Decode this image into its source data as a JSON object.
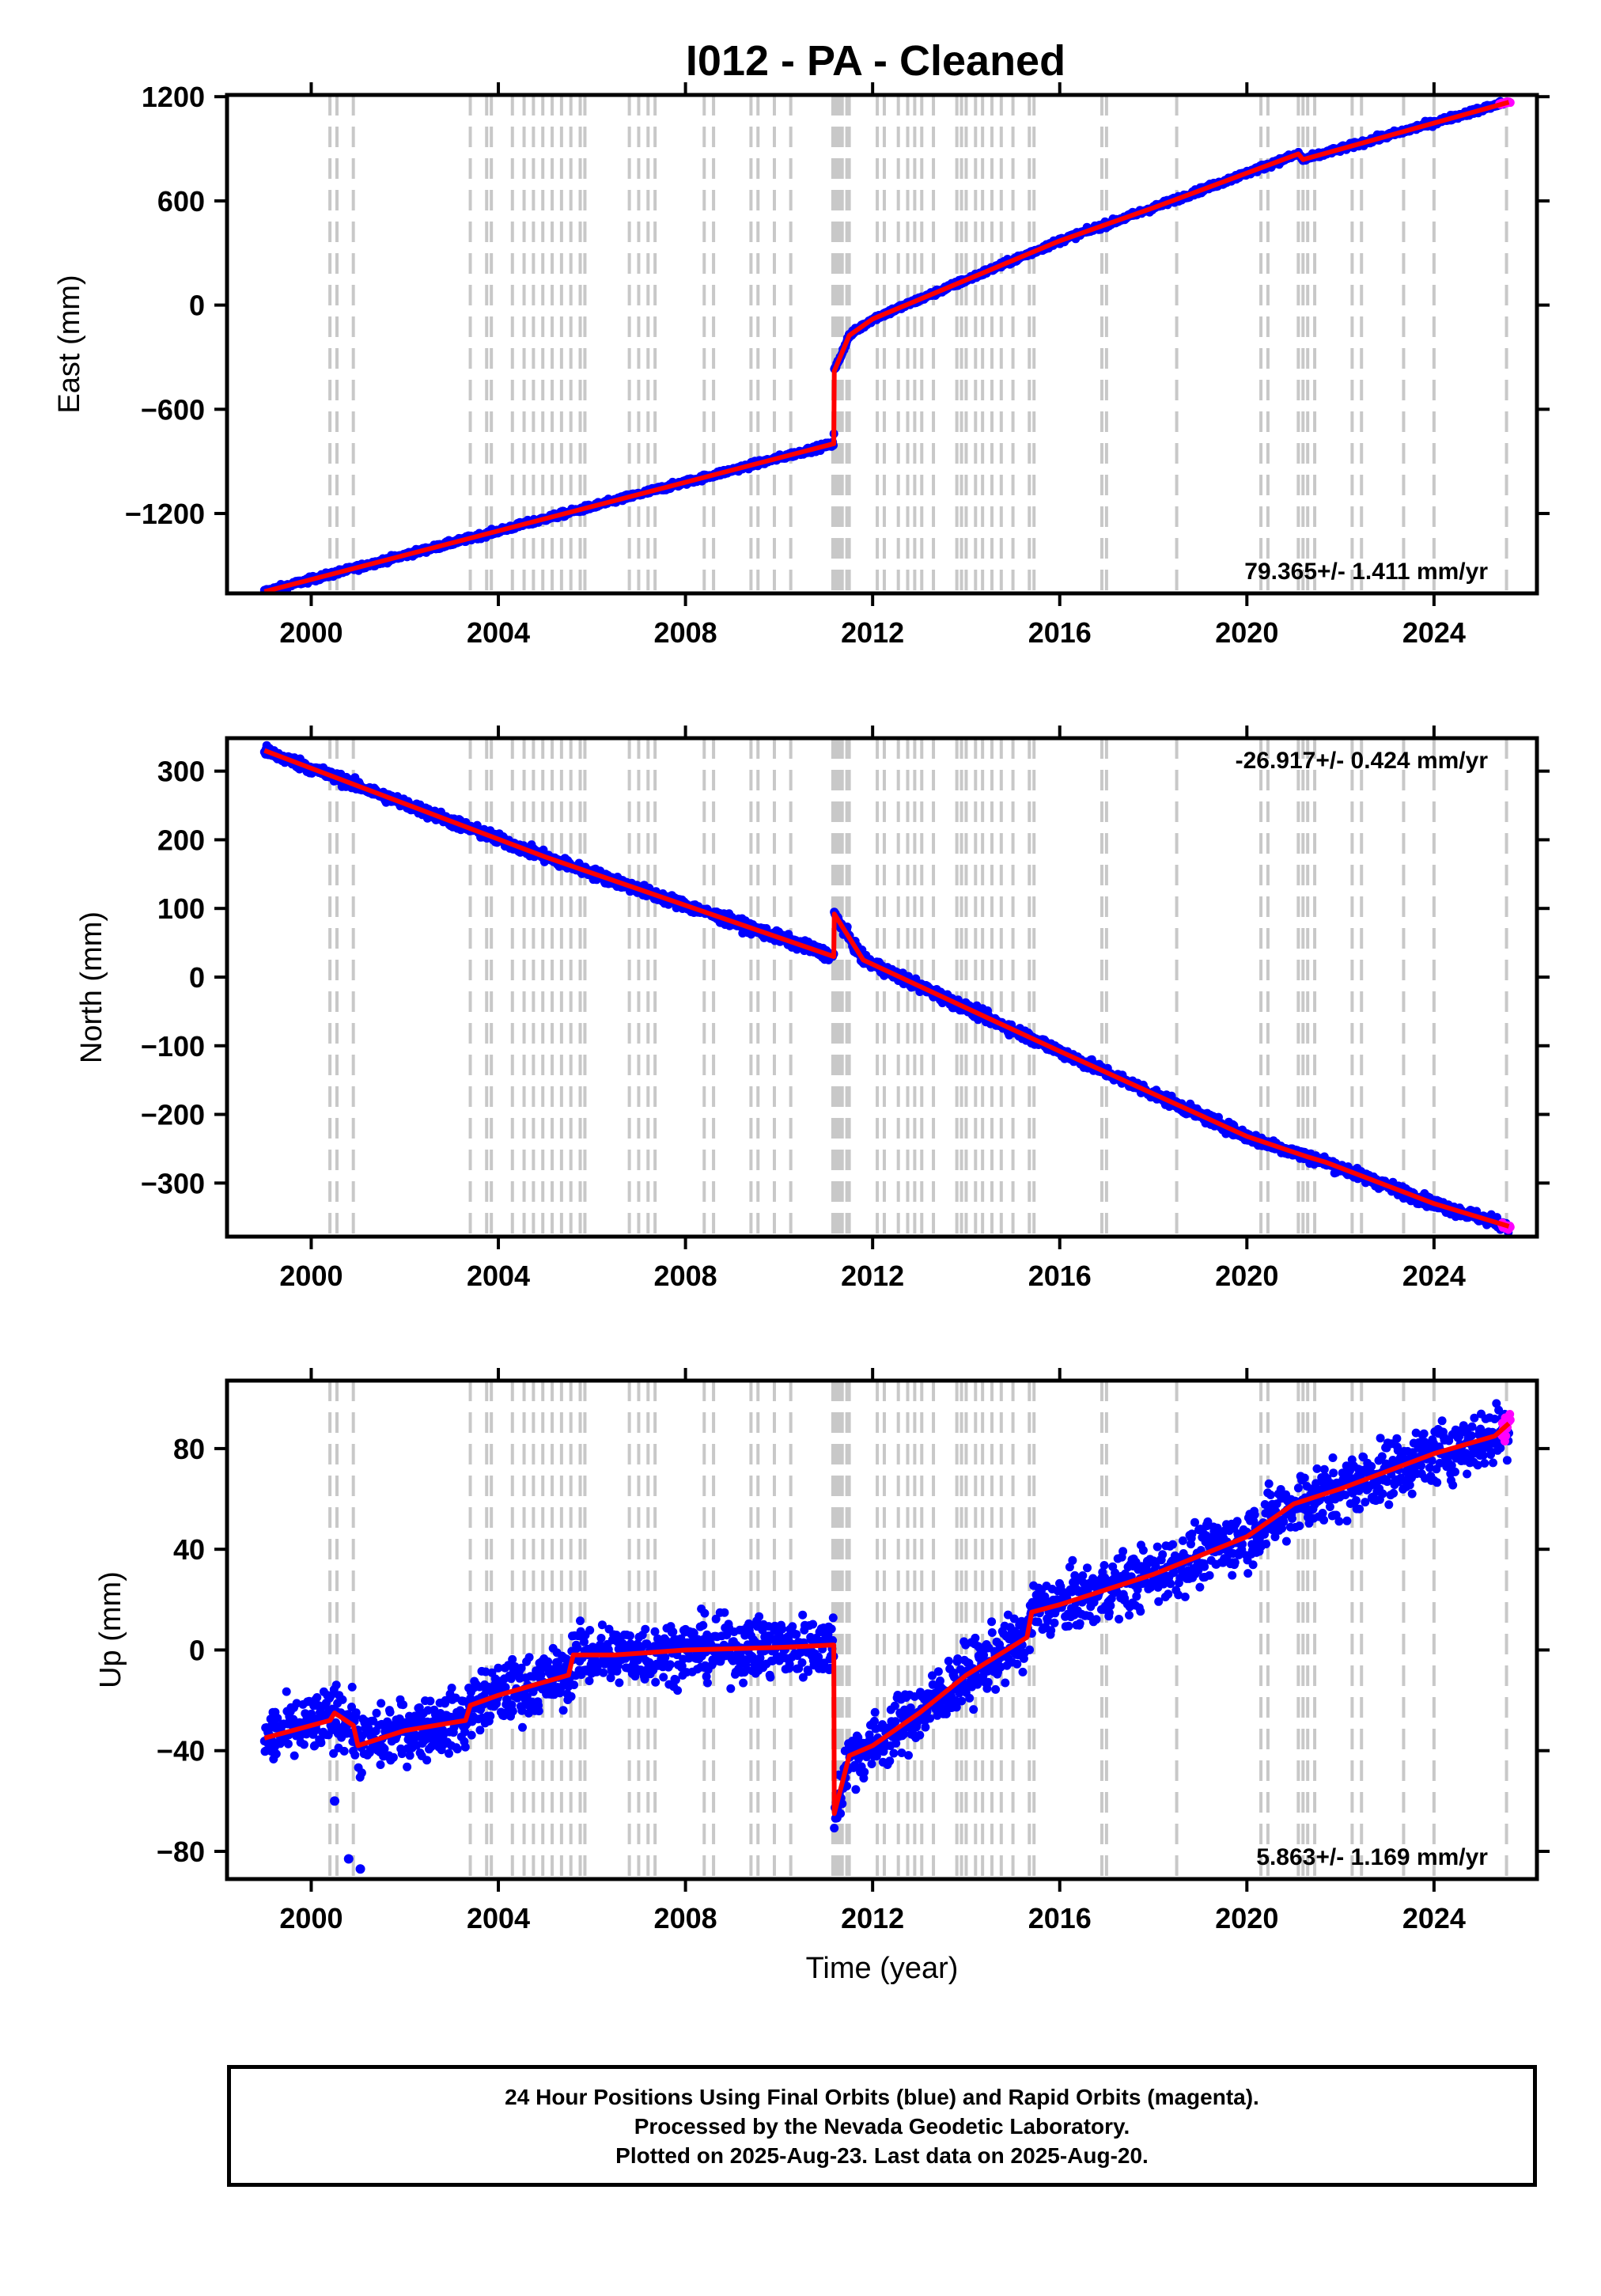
{
  "title": "I012  - PA - Cleaned",
  "colors": {
    "final_points": "#0000ff",
    "rapid_points": "#ff00ff",
    "model_line": "#ff0000",
    "event_lines": "#c8c8c8",
    "frame": "#000000"
  },
  "chart_data": [
    {
      "type": "scatter",
      "panel": "east",
      "ylabel": "East (mm)",
      "xlabel": "",
      "rate_label": "79.365+/- 1.411 mm/yr",
      "rate_position": "bottom-right",
      "xlim": [
        1998.2,
        2026.2
      ],
      "ylim": [
        -1660,
        1210
      ],
      "x_ticks": [
        2000,
        2004,
        2008,
        2012,
        2016,
        2020,
        2024
      ],
      "x_tick_labels": [
        "2000",
        "2004",
        "2008",
        "2012",
        "2016",
        "2020",
        "2024"
      ],
      "y_ticks": [
        1200,
        600,
        0,
        -600,
        -1200
      ],
      "y_tick_labels": [
        "1200",
        "600",
        "0",
        "−600",
        "−1200"
      ],
      "series": [
        {
          "marker": "final",
          "color": "#0000ff",
          "x": [
            1999.0,
            2011.17,
            2011.18,
            2011.5,
            2012,
            2014,
            2016,
            2018,
            2021.1,
            2021.2,
            2025.5
          ],
          "y": [
            -1650,
            -798,
            -380,
            -175,
            -80,
            145,
            370,
            560,
            870,
            838,
            1165
          ],
          "noise": 8
        },
        {
          "marker": "rapid",
          "color": "#ff00ff",
          "x": [
            2025.4,
            2025.63
          ],
          "y": [
            1158,
            1170
          ],
          "noise": 3
        }
      ],
      "model": {
        "x": [
          1999.0,
          2011.17,
          2011.18,
          2011.5,
          2012,
          2014,
          2016,
          2018,
          2021.1,
          2021.2,
          2025.6
        ],
        "y": [
          -1650,
          -798,
          -380,
          -175,
          -80,
          145,
          370,
          560,
          870,
          838,
          1168
        ]
      }
    },
    {
      "type": "scatter",
      "panel": "north",
      "ylabel": "North (mm)",
      "xlabel": "",
      "rate_label": "-26.917+/- 0.424 mm/yr",
      "rate_position": "top-right",
      "xlim": [
        1998.2,
        2026.2
      ],
      "ylim": [
        -378,
        348
      ],
      "x_ticks": [
        2000,
        2004,
        2008,
        2012,
        2016,
        2020,
        2024
      ],
      "x_tick_labels": [
        "2000",
        "2004",
        "2008",
        "2012",
        "2016",
        "2020",
        "2024"
      ],
      "y_ticks": [
        300,
        200,
        100,
        0,
        -100,
        -200,
        -300
      ],
      "y_tick_labels": [
        "300",
        "200",
        "100",
        "0",
        "−100",
        "−200",
        "−300"
      ],
      "series": [
        {
          "marker": "final",
          "color": "#0000ff",
          "x": [
            1999.0,
            2005,
            2011.17,
            2011.18,
            2011.8,
            2014,
            2016,
            2018,
            2020,
            2021.3,
            2021.7,
            2024,
            2025.6
          ],
          "y": [
            330,
            175,
            30,
            92,
            25,
            -45,
            -108,
            -170,
            -232,
            -262,
            -270,
            -330,
            -363
          ],
          "noise": 4
        },
        {
          "marker": "rapid",
          "color": "#ff00ff",
          "x": [
            2025.45,
            2025.63
          ],
          "y": [
            -362,
            -366
          ],
          "noise": 2
        }
      ],
      "model": {
        "x": [
          1999.0,
          2005,
          2011.17,
          2011.18,
          2011.8,
          2014,
          2016,
          2018,
          2020,
          2021.3,
          2021.7,
          2024,
          2025.6
        ],
        "y": [
          330,
          175,
          30,
          92,
          25,
          -45,
          -108,
          -170,
          -232,
          -262,
          -270,
          -330,
          -363
        ]
      }
    },
    {
      "type": "scatter",
      "panel": "up",
      "ylabel": "Up (mm)",
      "xlabel": "Time (year)",
      "rate_label": "5.863+/- 1.169 mm/yr",
      "rate_position": "bottom-right",
      "xlim": [
        1998.2,
        2026.2
      ],
      "ylim": [
        -91,
        107
      ],
      "x_ticks": [
        2000,
        2004,
        2008,
        2012,
        2016,
        2020,
        2024
      ],
      "x_tick_labels": [
        "2000",
        "2004",
        "2008",
        "2012",
        "2016",
        "2020",
        "2024"
      ],
      "y_ticks": [
        80,
        40,
        0,
        -40,
        -80
      ],
      "y_tick_labels": [
        "80",
        "40",
        "0",
        "−40",
        "−80"
      ],
      "series": [
        {
          "marker": "final",
          "color": "#0000ff",
          "x": [
            1999.0,
            2000.0,
            2000.4,
            2000.5,
            2000.9,
            2001.0,
            2002.0,
            2003.3,
            2003.4,
            2004.0,
            2005.5,
            2005.6,
            2006.5,
            2008.0,
            2010.0,
            2011.17,
            2011.18,
            2011.5,
            2012.0,
            2013.0,
            2014.0,
            2015.3,
            2015.4,
            2016.0,
            2018.0,
            2020.0,
            2021.0,
            2022.0,
            2024.0,
            2025.3,
            2025.6
          ],
          "y": [
            -35,
            -30,
            -28,
            -25,
            -30,
            -38,
            -32,
            -28,
            -22,
            -18,
            -10,
            -2,
            -2,
            0,
            1,
            2,
            -65,
            -42,
            -38,
            -25,
            -10,
            5,
            15,
            18,
            30,
            45,
            58,
            64,
            78,
            85,
            90
          ],
          "noise": 6
        },
        {
          "marker": "rapid",
          "color": "#ff00ff",
          "x": [
            2025.45,
            2025.63
          ],
          "y": [
            88,
            92
          ],
          "noise": 3
        }
      ],
      "outliers": {
        "x": [
          2000.8,
          2001.05,
          2000.5
        ],
        "y": [
          -83,
          -87,
          -60
        ]
      },
      "model": {
        "x": [
          1999.0,
          2000.0,
          2000.4,
          2000.5,
          2000.9,
          2001.0,
          2002.0,
          2003.3,
          2003.4,
          2004.0,
          2005.5,
          2005.6,
          2006.5,
          2008.0,
          2010.0,
          2011.17,
          2011.18,
          2011.5,
          2012.0,
          2013.0,
          2014.0,
          2015.3,
          2015.4,
          2016.0,
          2018.0,
          2020.0,
          2021.0,
          2022.0,
          2024.0,
          2025.3,
          2025.6
        ],
        "y": [
          -35,
          -30,
          -28,
          -25,
          -30,
          -38,
          -32,
          -28,
          -22,
          -18,
          -10,
          -2,
          -2,
          0,
          1,
          2,
          -65,
          -42,
          -38,
          -25,
          -10,
          5,
          15,
          18,
          30,
          45,
          58,
          64,
          78,
          85,
          90
        ]
      }
    }
  ],
  "event_lines": [
    2000.4,
    2000.55,
    2000.9,
    2003.4,
    2003.75,
    2003.85,
    2004.3,
    2004.55,
    2004.75,
    2004.95,
    2005.15,
    2005.35,
    2005.55,
    2005.75,
    2005.85,
    2006.8,
    2007.0,
    2007.2,
    2007.35,
    2008.4,
    2008.6,
    2009.4,
    2009.55,
    2009.9,
    2010.25,
    2011.15,
    2011.2,
    2011.25,
    2011.3,
    2011.35,
    2011.45,
    2011.5,
    2012.1,
    2012.25,
    2012.55,
    2012.75,
    2012.9,
    2013.05,
    2013.3,
    2013.8,
    2013.9,
    2014.0,
    2014.2,
    2014.35,
    2014.55,
    2014.75,
    2015.0,
    2015.35,
    2015.45,
    2016.9,
    2017.0,
    2018.5,
    2020.3,
    2020.45,
    2021.1,
    2021.2,
    2021.3,
    2021.45,
    2022.25,
    2022.45,
    2023.35,
    2024.0,
    2025.55
  ],
  "footer": {
    "line1": "24 Hour Positions Using Final Orbits (blue) and Rapid Orbits (magenta).",
    "line2": "Processed by the Nevada Geodetic Laboratory.",
    "line3": "Plotted on 2025-Aug-23. Last data on 2025-Aug-20."
  }
}
